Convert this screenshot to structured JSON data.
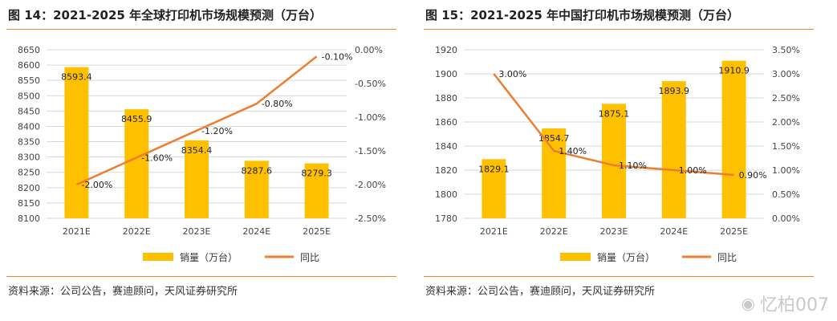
{
  "colors": {
    "bar": "#ffc000",
    "line": "#ed7d31",
    "rule": "#e08b2e",
    "grid": "#d9d9d9"
  },
  "watermark": {
    "icon": "weibo-icon",
    "text": "忆柏007"
  },
  "chart_data": [
    {
      "type": "bar",
      "title": "图 14：2021-2025 年全球打印机市场规模预测（万台）",
      "source": "资料来源：公司公告，赛迪顾问，天风证券研究所",
      "categories": [
        "2021E",
        "2022E",
        "2023E",
        "2024E",
        "2025E"
      ],
      "series": [
        {
          "name": "销量（万台）",
          "kind": "bar",
          "axis": "left",
          "values": [
            8593.4,
            8455.9,
            8354.4,
            8287.6,
            8279.3
          ],
          "labels": [
            "8593.4",
            "8455.9",
            "8354.4",
            "8287.6",
            "8279.3"
          ]
        },
        {
          "name": "同比",
          "kind": "line",
          "axis": "right",
          "values": [
            -2.0,
            -1.6,
            -1.2,
            -0.8,
            -0.1
          ],
          "labels": [
            "-2.00%",
            "-1.60%",
            "-1.20%",
            "-0.80%",
            "-0.10%"
          ]
        }
      ],
      "ylim": [
        8100,
        8650
      ],
      "yticks": [
        "8650",
        "8600",
        "8550",
        "8500",
        "8450",
        "8400",
        "8350",
        "8300",
        "8250",
        "8200",
        "8150",
        "8100"
      ],
      "y2lim": [
        -2.5,
        0
      ],
      "y2ticks": [
        "0.00%",
        "-0.50%",
        "-1.00%",
        "-1.50%",
        "-2.00%",
        "-2.50%"
      ],
      "legend_position": "bottom",
      "grid": true
    },
    {
      "type": "bar",
      "title": "图 15：2021-2025 年中国打印机市场规模预测（万台）",
      "source": "资料来源：公司公告，赛迪顾问，天风证券研究所",
      "categories": [
        "2021E",
        "2022E",
        "2023E",
        "2024E",
        "2025E"
      ],
      "series": [
        {
          "name": "销量（万台）",
          "kind": "bar",
          "axis": "left",
          "values": [
            1829.1,
            1854.7,
            1875.1,
            1893.9,
            1910.9
          ],
          "labels": [
            "1829.1",
            "1854.7",
            "1875.1",
            "1893.9",
            "1910.9"
          ]
        },
        {
          "name": "同比",
          "kind": "line",
          "axis": "right",
          "values": [
            3.0,
            1.4,
            1.1,
            1.0,
            0.9
          ],
          "labels": [
            "3.00%",
            "1.40%",
            "1.10%",
            "1.00%",
            "0.90%"
          ]
        }
      ],
      "ylim": [
        1780,
        1920
      ],
      "yticks": [
        "1920",
        "1900",
        "1880",
        "1860",
        "1840",
        "1820",
        "1800",
        "1780"
      ],
      "y2lim": [
        0,
        3.5
      ],
      "y2ticks": [
        "3.50%",
        "3.00%",
        "2.50%",
        "2.00%",
        "1.50%",
        "1.00%",
        "0.50%",
        "0.00%"
      ],
      "legend_position": "bottom",
      "grid": true
    }
  ]
}
